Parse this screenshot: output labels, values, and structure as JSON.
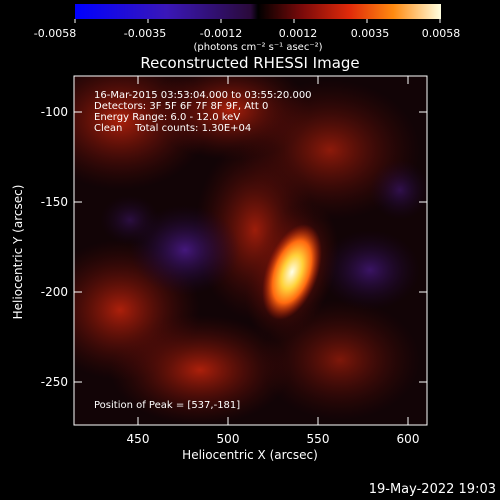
{
  "colorbar": {
    "ticks": [
      "-0.0058",
      "-0.0035",
      "-0.0012",
      "0.0012",
      "0.0035",
      "0.0058"
    ],
    "unit_label": "(photons cm⁻² s⁻¹ asec⁻²)"
  },
  "plot": {
    "title": "Reconstructed RHESSI Image",
    "xlabel": "Heliocentric X (arcsec)",
    "ylabel": "Heliocentric Y (arcsec)",
    "xticks": [
      "450",
      "500",
      "550",
      "600"
    ],
    "yticks": [
      "-100",
      "-150",
      "-200",
      "-250"
    ]
  },
  "annotations": {
    "line1": "16-Mar-2015 03:53:04.000 to 03:55:20.000",
    "line2": "Detectors: 3F 5F 6F 7F 8F 9F, Att 0",
    "line3": "Energy Range: 6.0 - 12.0 keV",
    "line4": "Clean    Total counts: 1.30E+04",
    "peak": "Position of Peak = [537,-181]"
  },
  "timestamp": "19-May-2022 19:03"
}
